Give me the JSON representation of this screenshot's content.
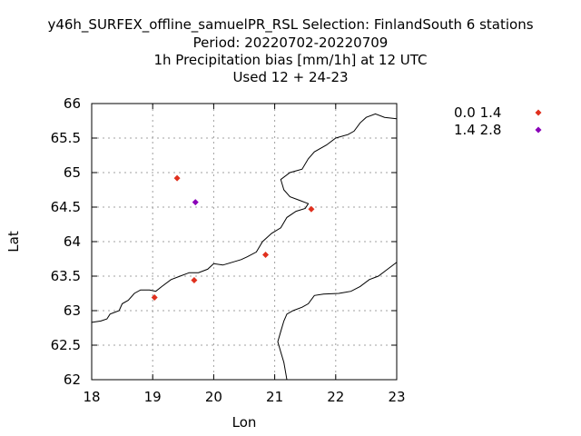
{
  "title": {
    "line1": "y46h_SURFEX_offline_samuelPR_RSL   Selection: FinlandSouth       6 stations",
    "line2": "Period: 20220702-20220709",
    "line3": "1h Precipitation bias [mm/1h] at  12 UTC",
    "line4": "Used  12 + 24-23"
  },
  "chart_data": {
    "type": "scatter",
    "xlabel": "Lon",
    "ylabel": "Lat",
    "xlim": [
      18,
      23
    ],
    "ylim": [
      62,
      66
    ],
    "xticks": [
      "18",
      "19",
      "20",
      "21",
      "22",
      "23"
    ],
    "yticks": [
      "62",
      "62.5",
      "63",
      "63.5",
      "64",
      "64.5",
      "65",
      "65.5",
      "66"
    ],
    "grid": true,
    "legend_position": "right",
    "series": [
      {
        "name": "0.0 1.4",
        "color": "#e0301e",
        "points": [
          {
            "x": 19.4,
            "y": 64.92
          },
          {
            "x": 21.6,
            "y": 64.47
          },
          {
            "x": 20.85,
            "y": 63.81
          },
          {
            "x": 19.68,
            "y": 63.44
          },
          {
            "x": 19.03,
            "y": 63.19
          }
        ]
      },
      {
        "name": "1.4 2.8",
        "color": "#8a00b8",
        "points": [
          {
            "x": 19.7,
            "y": 64.57
          }
        ]
      }
    ],
    "coastlines": [
      [
        [
          18.0,
          62.83
        ],
        [
          18.15,
          62.85
        ],
        [
          18.25,
          62.88
        ],
        [
          18.3,
          62.95
        ],
        [
          18.45,
          63.0
        ],
        [
          18.5,
          63.1
        ],
        [
          18.6,
          63.15
        ],
        [
          18.7,
          63.25
        ],
        [
          18.8,
          63.3
        ],
        [
          18.95,
          63.3
        ],
        [
          19.05,
          63.28
        ],
        [
          19.15,
          63.35
        ],
        [
          19.3,
          63.45
        ],
        [
          19.45,
          63.5
        ],
        [
          19.6,
          63.55
        ],
        [
          19.75,
          63.55
        ],
        [
          19.9,
          63.6
        ],
        [
          20.0,
          63.68
        ],
        [
          20.15,
          63.66
        ],
        [
          20.3,
          63.7
        ],
        [
          20.45,
          63.74
        ],
        [
          20.55,
          63.78
        ],
        [
          20.7,
          63.85
        ],
        [
          20.8,
          64.0
        ],
        [
          20.95,
          64.12
        ],
        [
          21.1,
          64.2
        ],
        [
          21.2,
          64.35
        ],
        [
          21.35,
          64.44
        ],
        [
          21.5,
          64.48
        ],
        [
          21.55,
          64.55
        ],
        [
          21.4,
          64.6
        ],
        [
          21.25,
          64.65
        ],
        [
          21.15,
          64.75
        ],
        [
          21.1,
          64.9
        ],
        [
          21.25,
          65.0
        ],
        [
          21.45,
          65.05
        ],
        [
          21.55,
          65.2
        ],
        [
          21.65,
          65.3
        ],
        [
          21.85,
          65.4
        ],
        [
          22.0,
          65.5
        ],
        [
          22.2,
          65.55
        ],
        [
          22.3,
          65.6
        ],
        [
          22.4,
          65.72
        ],
        [
          22.5,
          65.8
        ],
        [
          22.65,
          65.85
        ],
        [
          22.8,
          65.8
        ],
        [
          23.0,
          65.78
        ]
      ],
      [
        [
          23.0,
          63.7
        ],
        [
          22.85,
          63.6
        ],
        [
          22.7,
          63.5
        ],
        [
          22.55,
          63.45
        ],
        [
          22.4,
          63.35
        ],
        [
          22.25,
          63.28
        ],
        [
          22.05,
          63.25
        ],
        [
          21.8,
          63.24
        ],
        [
          21.65,
          63.22
        ],
        [
          21.55,
          63.1
        ],
        [
          21.45,
          63.05
        ],
        [
          21.3,
          63.0
        ],
        [
          21.2,
          62.95
        ],
        [
          21.15,
          62.85
        ],
        [
          21.1,
          62.7
        ],
        [
          21.05,
          62.55
        ],
        [
          21.1,
          62.4
        ],
        [
          21.15,
          62.25
        ],
        [
          21.18,
          62.1
        ],
        [
          21.2,
          62.0
        ]
      ]
    ]
  }
}
